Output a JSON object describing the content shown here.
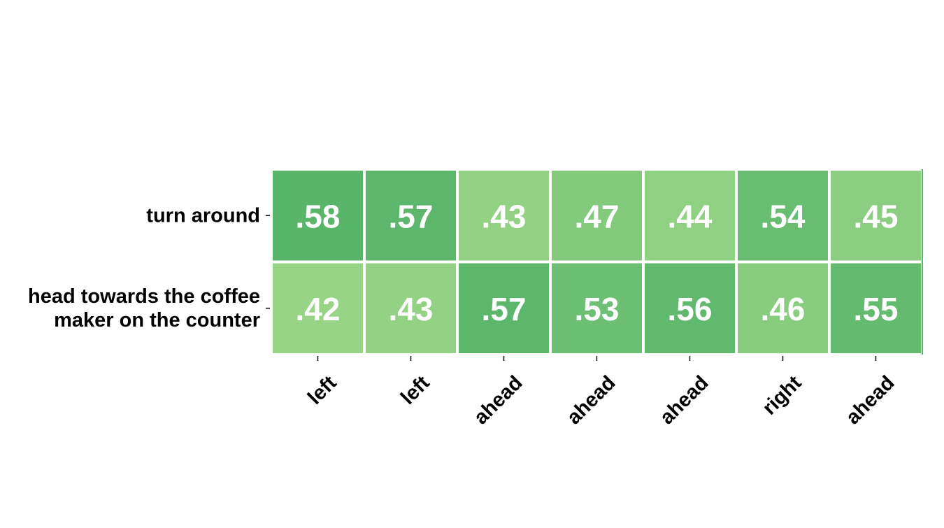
{
  "chart_data": {
    "type": "heatmap",
    "rows": [
      "turn around",
      "head towards the coffee maker on the counter"
    ],
    "columns": [
      "left",
      "left",
      "ahead",
      "ahead",
      "ahead",
      "right",
      "ahead"
    ],
    "values": [
      [
        0.58,
        0.57,
        0.43,
        0.47,
        0.44,
        0.54,
        0.45
      ],
      [
        0.42,
        0.43,
        0.57,
        0.53,
        0.56,
        0.46,
        0.55
      ]
    ],
    "cell_labels": [
      [
        ".58",
        ".57",
        ".43",
        ".47",
        ".44",
        ".54",
        ".45"
      ],
      [
        ".42",
        ".43",
        ".57",
        ".53",
        ".56",
        ".46",
        ".55"
      ]
    ],
    "row_label_lines": [
      [
        "turn around"
      ],
      [
        "head towards the coffee",
        "maker on the counter"
      ]
    ],
    "colormap": {
      "low_value": 0.42,
      "high_value": 0.58,
      "low_color": "#97d486",
      "high_color": "#58b56a"
    },
    "cell_text_color": "#ffffff",
    "label_color": "#000000",
    "grid_line_color": "#ffffff"
  }
}
